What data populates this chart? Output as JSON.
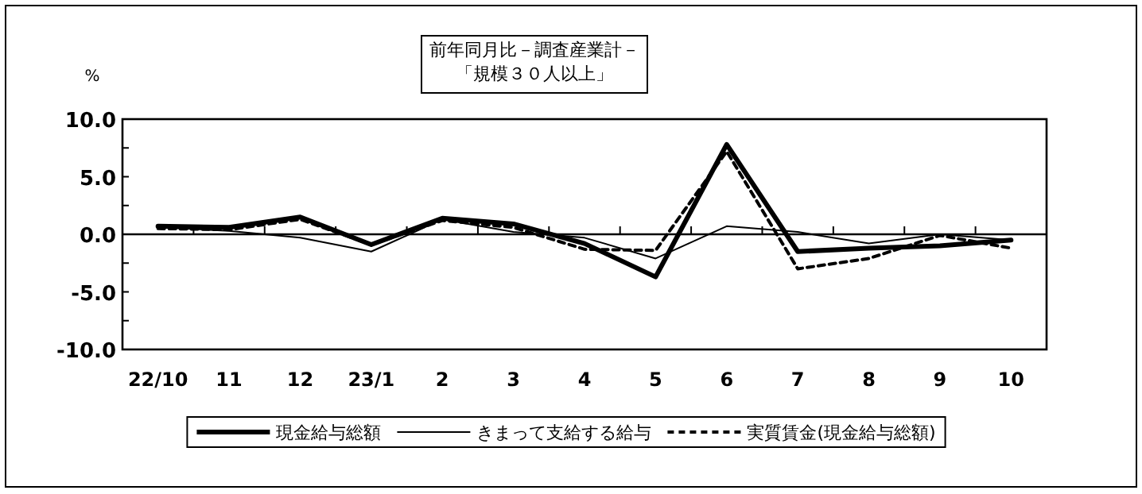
{
  "chart_data": {
    "type": "line",
    "title": "前年同月比－調査産業計－",
    "subtitle": "「規模３０人以上」",
    "ylabel": "%",
    "categories": [
      "22/10",
      "11",
      "12",
      "23/1",
      "2",
      "3",
      "4",
      "5",
      "6",
      "7",
      "8",
      "9",
      "10"
    ],
    "ylim": [
      -10,
      10
    ],
    "yticks": [
      {
        "value": -10,
        "label": "-10.0"
      },
      {
        "value": -7.5,
        "label": null
      },
      {
        "value": -5,
        "label": "-5.0"
      },
      {
        "value": -2.5,
        "label": null
      },
      {
        "value": 0,
        "label": "0.0"
      },
      {
        "value": 2.5,
        "label": null
      },
      {
        "value": 5,
        "label": "5.0"
      },
      {
        "value": 7.5,
        "label": null
      },
      {
        "value": 10,
        "label": "10.0"
      }
    ],
    "legend": "bottom",
    "marker": "none",
    "series": [
      {
        "name": "現金給与総額",
        "color": "#000000",
        "line_style": "solid",
        "values": [
          0.7,
          0.6,
          1.5,
          -0.9,
          1.4,
          0.9,
          -0.8,
          -3.7,
          7.8,
          -1.5,
          -1.2,
          -1.0,
          -0.5
        ]
      },
      {
        "name": "きまって支給する給与",
        "color": "#000000",
        "line_style": "solid",
        "values": [
          0.6,
          0.3,
          -0.3,
          -1.5,
          1.3,
          0.2,
          -0.3,
          -2.1,
          0.7,
          0.2,
          -0.8,
          0.0,
          -0.5
        ]
      },
      {
        "name": "実質賃金(現金給与総額)",
        "color": "#000000",
        "line_style": "dashed",
        "values": [
          0.5,
          0.4,
          1.3,
          -0.9,
          1.2,
          0.6,
          -1.3,
          -1.4,
          7.2,
          -3.0,
          -2.1,
          -0.1,
          -1.2
        ]
      }
    ]
  }
}
